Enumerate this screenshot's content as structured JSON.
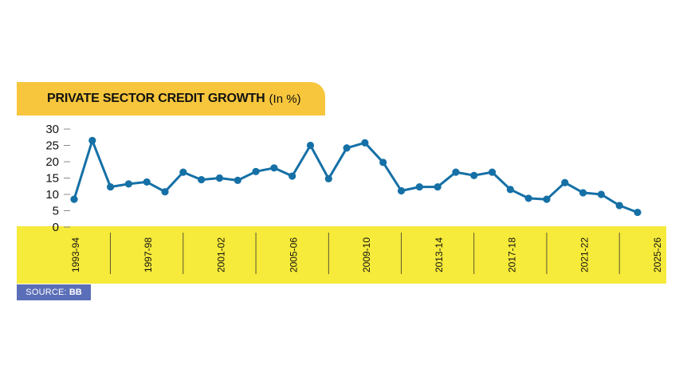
{
  "title": {
    "main": "PRIVATE SECTOR CREDIT GROWTH",
    "unit": "(In %)"
  },
  "source": {
    "label": "SOURCE:",
    "value": "BB"
  },
  "colors": {
    "banner": "#f7c63c",
    "axis_band": "#f6ea3a",
    "line": "#1570a6",
    "source_badge": "#5b6fb8"
  },
  "chart_data": {
    "type": "line",
    "title": "PRIVATE SECTOR CREDIT GROWTH (In %)",
    "xlabel": "",
    "ylabel": "",
    "ylim": [
      0,
      30
    ],
    "yticks": [
      0,
      5,
      10,
      15,
      20,
      25,
      30
    ],
    "grid": false,
    "legend": "none",
    "x_labels": [
      "1993-94",
      "1997-98",
      "2001-02",
      "2005-06",
      "2009-10",
      "2013-14",
      "2017-18",
      "2021-22",
      "2025-26"
    ],
    "x_label_positions": [
      0,
      4,
      8,
      12,
      16,
      20,
      24,
      28,
      32
    ],
    "series": [
      {
        "values": [
          8.5,
          26.5,
          12.3,
          13.2,
          13.8,
          10.8,
          16.8,
          14.5,
          15.0,
          14.3,
          17.0,
          18.1,
          15.6,
          25.0,
          14.8,
          24.2,
          25.8,
          19.8,
          11.1,
          12.3,
          12.3,
          16.8,
          15.8,
          16.8,
          11.5,
          8.8,
          8.5,
          13.6,
          10.5,
          10.0,
          6.6,
          4.5
        ]
      }
    ]
  }
}
